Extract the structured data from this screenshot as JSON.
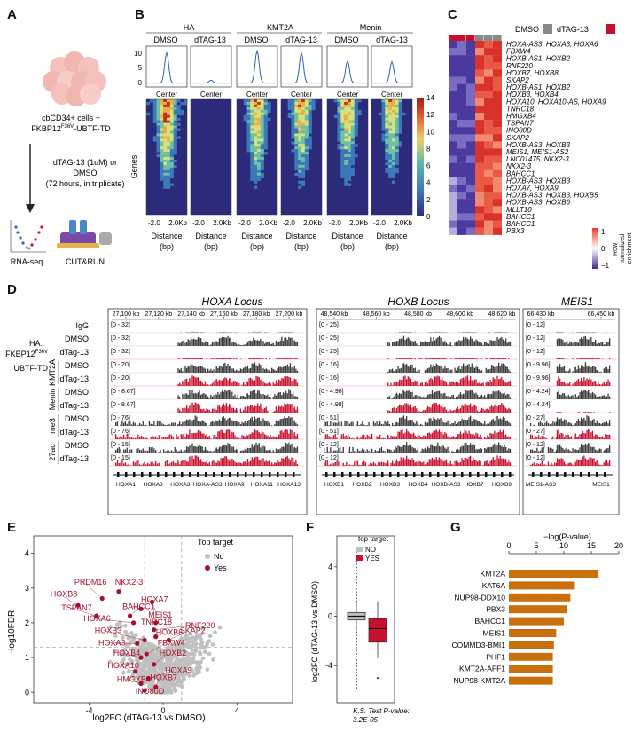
{
  "panels": {
    "a": "A",
    "b": "B",
    "c": "C",
    "d": "D",
    "e": "E",
    "f": "F",
    "g": "G"
  },
  "panelA": {
    "cells_line1": "cbCD34+ cells +",
    "cells_line2": "FKBP12",
    "cells_sup": "F36V",
    "cells_line2b": "-UBTF-TD",
    "treat_line1": "dTAG-13 (1uM) or",
    "treat_line2": "DMSO",
    "treat_line3": "(72 hours, in triplicate)",
    "rnaseq": "RNA-seq",
    "cutrun": "CUT&RUN"
  },
  "panelB": {
    "groups": [
      "HA",
      "KMT2A",
      "Menin"
    ],
    "conditions": [
      "DMSO",
      "dTAG-13",
      "DMSO",
      "dTAG-13",
      "DMSO",
      "dTAG-13"
    ],
    "profile_yticks": [
      "0",
      "5",
      "10"
    ],
    "center": "Center",
    "genes": "Genes",
    "xtick_left": "-2.0",
    "xtick_right": "2.0Kb",
    "xlabel1": "Distance",
    "xlabel2": "(bp)",
    "colorbar_ticks": [
      "0",
      "2",
      "4",
      "6",
      "8",
      "10",
      "12",
      "14"
    ]
  },
  "panelC": {
    "legend_dmso": "DMSO",
    "legend_dtag": "dTAG-13",
    "legend_dmso_color": "#888888",
    "legend_dtag_color": "#c8102e",
    "genes": [
      "HOXA-AS3, HOXA3, HOXA6",
      "FBXW4",
      "HOXB-AS1, HOXB2",
      "RNF220",
      "HOXB7, HOXB8",
      "SKAP2",
      "HOXB-AS1, HOXB2",
      "HOXB3, HOXB4",
      "HOXA10, HOXA10-AS, HOXA9",
      "TNRC18",
      "HMGXB4",
      "TSPAN7",
      "INO80D",
      "SKAP2",
      "HOXB-AS3, HOXB3",
      "MEIS1, MEIS1-AS2",
      "LNC01475, NKX2-3",
      "NKX2-3",
      "BAHCC1",
      "HOXB-AS3, HOXB3",
      "HOXA7, HOXA9",
      "HOXB-AS3, HOXB3, HOXB5",
      "HOXB-AS3, HOXB6",
      "MLLT10",
      "BAHCC1",
      "BAHCC1",
      "PBX3"
    ],
    "cb_title1": "Row",
    "cb_title2": "normalized",
    "cb_title3": "enrichment",
    "cb_ticks": [
      "1",
      "0",
      "−1"
    ]
  },
  "panelD": {
    "loci": [
      "HOXA Locus",
      "HOXB Locus",
      "MEIS1"
    ],
    "coords": [
      [
        "27,100 kb",
        "27,120 kb",
        "27,140 kb",
        "27,160 kb",
        "27,180 kb",
        "27,200 kb"
      ],
      [
        "48,540 kb",
        "48,560 kb",
        "48,580 kb",
        "48,600 kb",
        "48,620 kb"
      ],
      [
        "66,430 kb",
        "66,450 kb"
      ]
    ],
    "track_labels": [
      "IgG",
      "DMSO",
      "dTag-13",
      "DMSO",
      "dTag-13",
      "DMSO",
      "dTag-13",
      "DMSO",
      "dTag-13",
      "DMSO",
      "dTag-13"
    ],
    "group_ha": [
      "HA:",
      "FKBP12",
      "F36V",
      "UBTF-TD"
    ],
    "group_kmt2a": "KMT2A",
    "group_menin": "Menin",
    "group_me3": "me3",
    "group_27ac": "27ac",
    "ranges": [
      [
        "[0 - 32]",
        "[0 - 32]",
        "[0 - 32]",
        "[0 - 20]",
        "[0 - 20]",
        "[0 - 8.67]",
        "[0 - 8.67]",
        "[0 - 76]",
        "[0 - 76]",
        "[0 - 15]",
        "[0 - 15]"
      ],
      [
        "[0 - 25]",
        "[0 - 25]",
        "[0 - 25]",
        "[0 - 16]",
        "[0 - 16]",
        "[0 - 4.98]",
        "[0 - 4.98]",
        "[0 - 51]",
        "[0 - 51]",
        "[0 - 12]",
        "[0 - 12]"
      ],
      [
        "[0 - 12]",
        "[0 - 12]",
        "[0 - 12]",
        "[0 - 9.96]",
        "[0 - 9.96]",
        "[0 - 4.24]",
        "[0 - 4.24]",
        "[0 - 27]",
        "[0 - 27]",
        "[0 - 12]",
        "[0 - 12]"
      ]
    ],
    "gene_labels": [
      [
        "HOXA1",
        "HOXA3",
        "HOXA3",
        "HOXA-AS3",
        "HOXA9",
        "HOXA11",
        "HOXA13"
      ],
      [
        "HOXB1",
        "HOXB2",
        "HOXB3",
        "HOXB4",
        "HOXB-AS3",
        "HOXB7",
        "HOXB9"
      ],
      [
        "MEIS1-AS3",
        "MEIS1"
      ]
    ],
    "dmso_color": "#3a3a3a",
    "dtag_color": "#c8102e"
  },
  "panelE": {
    "legend_title": "Top target",
    "legend_no": "No",
    "legend_yes": "Yes",
    "ylabel": "-log10FDR",
    "xlabel": "log2FC (dTAG-13 vs DMSO)",
    "xticks": [
      "-4",
      "0",
      "4"
    ],
    "yticks": [
      "0",
      "1",
      "2",
      "3",
      "4"
    ],
    "labels": [
      "PRDM16",
      "NKX2-3",
      "HOXB8",
      "TSPAN7",
      "BAHCC1",
      "HOXA7",
      "HOXA6",
      "MEIS1",
      "TNRC18",
      "RNF220",
      "HOXB3",
      "HOXB6",
      "SKAP2",
      "HOXA3",
      "FBXW4",
      "HOXB4",
      "HOXB2",
      "HOXA10",
      "HOXA9",
      "HMGXB4",
      "HOXB7",
      "INO80D"
    ],
    "no_color": "#c0c0c0",
    "yes_color": "#a3112a"
  },
  "panelF": {
    "legend_title": "top target",
    "legend_no": "NO",
    "legend_yes": "YES",
    "ylabel": "log2FC (dTAG-13 vs DMSO)",
    "yticks": [
      "4",
      "0",
      "-4"
    ],
    "test_line1": "K.S. Test P-value:",
    "test_line2": "3.2E-05"
  },
  "chart_data": {
    "type": "bar",
    "title": "",
    "xlabel": "−log(P-value)",
    "ylabel": "",
    "categories": [
      "KMT2A",
      "KAT6A",
      "NUP98-DDX10",
      "PBX3",
      "BAHCC1",
      "MEIS1",
      "COMMD3-BMI1",
      "PHF1",
      "KMT2A-AFF1",
      "NUP98-KMT2A"
    ],
    "values": [
      16.3,
      12.0,
      11.2,
      10.5,
      10.0,
      8.6,
      8.2,
      8.0,
      8.0,
      8.0
    ],
    "xlim": [
      0,
      20
    ],
    "xticks": [
      "0",
      "5",
      "10",
      "15",
      "20"
    ],
    "bar_color": "#c8700e",
    "orientation": "horizontal"
  }
}
